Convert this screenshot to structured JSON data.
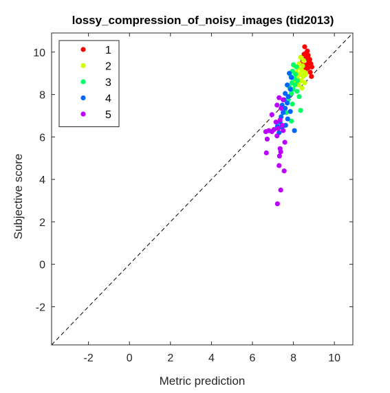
{
  "chart_data": {
    "type": "scatter",
    "title": "lossy_compression_of_noisy_images (tid2013)",
    "xlabel": "Metric prediction",
    "ylabel": "Subjective score",
    "xlim": [
      -3.8,
      10.9
    ],
    "ylim": [
      -3.8,
      10.9
    ],
    "xticks": [
      -2,
      0,
      2,
      4,
      6,
      8,
      10
    ],
    "yticks": [
      -2,
      0,
      2,
      4,
      6,
      8,
      10
    ],
    "grid": false,
    "legend_position": "top-left",
    "reference_line": {
      "style": "dashed",
      "color": "#000000",
      "from": [
        -3.8,
        -3.8
      ],
      "to": [
        10.9,
        10.9
      ]
    },
    "series": [
      {
        "name": "1",
        "color": "#ff0000",
        "points": [
          [
            8.55,
            10.25
          ],
          [
            8.68,
            10.05
          ],
          [
            8.62,
            9.95
          ],
          [
            8.72,
            9.85
          ],
          [
            8.52,
            9.9
          ],
          [
            8.8,
            9.65
          ],
          [
            8.6,
            9.7
          ],
          [
            8.75,
            9.55
          ],
          [
            8.85,
            9.45
          ],
          [
            8.65,
            9.4
          ],
          [
            8.9,
            9.3
          ],
          [
            8.7,
            9.25
          ],
          [
            8.58,
            9.15
          ],
          [
            8.82,
            9.05
          ],
          [
            8.88,
            8.85
          ],
          [
            8.5,
            9.35
          ],
          [
            8.45,
            9.55
          ]
        ]
      },
      {
        "name": "2",
        "color": "#ccff00",
        "points": [
          [
            8.35,
            9.75
          ],
          [
            8.5,
            9.6
          ],
          [
            8.28,
            9.45
          ],
          [
            8.45,
            9.35
          ],
          [
            8.22,
            9.25
          ],
          [
            8.4,
            9.15
          ],
          [
            8.55,
            9.05
          ],
          [
            8.3,
            8.95
          ],
          [
            8.48,
            8.85
          ],
          [
            8.2,
            8.75
          ],
          [
            8.38,
            8.65
          ],
          [
            8.55,
            8.55
          ],
          [
            8.25,
            8.45
          ],
          [
            8.12,
            8.6
          ],
          [
            8.42,
            8.3
          ],
          [
            8.6,
            8.95
          ],
          [
            8.05,
            9.35
          ],
          [
            8.15,
            9.05
          ]
        ]
      },
      {
        "name": "3",
        "color": "#00ff66",
        "points": [
          [
            8.0,
            9.4
          ],
          [
            8.15,
            9.3
          ],
          [
            7.95,
            9.1
          ],
          [
            8.1,
            8.95
          ],
          [
            7.88,
            8.85
          ],
          [
            8.05,
            8.75
          ],
          [
            8.2,
            8.65
          ],
          [
            7.92,
            8.55
          ],
          [
            8.08,
            8.45
          ],
          [
            7.8,
            8.35
          ],
          [
            7.98,
            8.25
          ],
          [
            8.18,
            8.15
          ],
          [
            7.9,
            8.05
          ],
          [
            8.28,
            7.9
          ],
          [
            7.75,
            7.75
          ],
          [
            7.95,
            7.55
          ],
          [
            8.35,
            7.25
          ],
          [
            7.65,
            7.15
          ],
          [
            7.9,
            6.75
          ]
        ]
      },
      {
        "name": "4",
        "color": "#0066ff",
        "points": [
          [
            7.8,
            9.0
          ],
          [
            7.9,
            8.8
          ],
          [
            7.7,
            8.45
          ],
          [
            7.85,
            8.25
          ],
          [
            7.6,
            8.05
          ],
          [
            7.75,
            7.9
          ],
          [
            7.55,
            7.75
          ],
          [
            7.7,
            7.6
          ],
          [
            7.45,
            7.5
          ],
          [
            7.6,
            7.35
          ],
          [
            7.85,
            7.2
          ],
          [
            7.5,
            7.15
          ],
          [
            7.4,
            6.95
          ],
          [
            7.72,
            6.85
          ],
          [
            7.35,
            6.7
          ],
          [
            7.62,
            6.55
          ],
          [
            7.22,
            6.5
          ],
          [
            7.45,
            6.45
          ],
          [
            7.3,
            6.2
          ],
          [
            8.05,
            6.3
          ]
        ]
      },
      {
        "name": "5",
        "color": "#bb00ff",
        "points": [
          [
            7.3,
            7.85
          ],
          [
            7.5,
            7.75
          ],
          [
            7.2,
            7.5
          ],
          [
            7.4,
            7.35
          ],
          [
            6.95,
            7.05
          ],
          [
            7.35,
            6.8
          ],
          [
            7.15,
            6.7
          ],
          [
            7.45,
            6.55
          ],
          [
            7.25,
            6.4
          ],
          [
            7.05,
            6.35
          ],
          [
            6.8,
            6.3
          ],
          [
            7.5,
            6.3
          ],
          [
            6.95,
            6.25
          ],
          [
            6.65,
            6.25
          ],
          [
            7.2,
            6.05
          ],
          [
            7.58,
            5.75
          ],
          [
            6.72,
            5.9
          ],
          [
            7.35,
            5.45
          ],
          [
            7.38,
            5.3
          ],
          [
            6.68,
            5.25
          ],
          [
            7.32,
            5.1
          ],
          [
            7.3,
            4.65
          ],
          [
            7.55,
            4.4
          ],
          [
            7.38,
            3.5
          ],
          [
            7.22,
            2.85
          ]
        ]
      }
    ]
  }
}
